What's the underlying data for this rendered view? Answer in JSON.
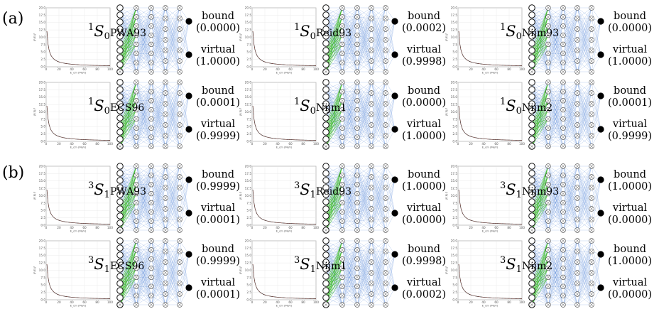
{
  "sections": [
    {
      "label": "(a)",
      "channel_sup": "1",
      "channel_sub": "0",
      "panels": [
        {
          "potential": "PWA93",
          "bound_label": "bound",
          "bound_value": "(0.0000)",
          "virtual_label": "virtual",
          "virtual_value": "(1.0000)"
        },
        {
          "potential": "Reid93",
          "bound_label": "bound",
          "bound_value": "(0.0002)",
          "virtual_label": "virtual",
          "virtual_value": "(0.9998)"
        },
        {
          "potential": "Nijm93",
          "bound_label": "bound",
          "bound_value": "(0.0000)",
          "virtual_label": "virtual",
          "virtual_value": "(1.0000)"
        },
        {
          "potential": "ECS96",
          "bound_label": "bound",
          "bound_value": "(0.0001)",
          "virtual_label": "virtual",
          "virtual_value": "(0.9999)"
        },
        {
          "potential": "Nijm1",
          "bound_label": "bound",
          "bound_value": "(0.0000)",
          "virtual_label": "virtual",
          "virtual_value": "(1.0000)"
        },
        {
          "potential": "Nijm2",
          "bound_label": "bound",
          "bound_value": "(0.0001)",
          "virtual_label": "virtual",
          "virtual_value": "(0.9999)"
        }
      ]
    },
    {
      "label": "(b)",
      "channel_sup": "3",
      "channel_sub": "1",
      "panels": [
        {
          "potential": "PWA93",
          "bound_label": "bound",
          "bound_value": "(0.9999)",
          "virtual_label": "virtual",
          "virtual_value": "(0.0001)"
        },
        {
          "potential": "Reid93",
          "bound_label": "bound",
          "bound_value": "(1.0000)",
          "virtual_label": "virtual",
          "virtual_value": "(0.0000)"
        },
        {
          "potential": "Nijm93",
          "bound_label": "bound",
          "bound_value": "(1.0000)",
          "virtual_label": "virtual",
          "virtual_value": "(0.0000)"
        },
        {
          "potential": "ECS96",
          "bound_label": "bound",
          "bound_value": "(0.9999)",
          "virtual_label": "virtual",
          "virtual_value": "(0.0001)"
        },
        {
          "potential": "Nijm1",
          "bound_label": "bound",
          "bound_value": "(0.9998)",
          "virtual_label": "virtual",
          "virtual_value": "(0.0002)"
        },
        {
          "potential": "Nijm2",
          "bound_label": "bound",
          "bound_value": "(1.0000)",
          "virtual_label": "virtual",
          "virtual_value": "(0.0000)"
        }
      ]
    }
  ],
  "mini_plot": {
    "yticks": [
      "0.0",
      "2.5",
      "5.0",
      "7.5",
      "10.0",
      "12.5",
      "15.0",
      "17.5",
      "20.0"
    ],
    "xticks": [
      "0",
      "20",
      "40",
      "60",
      "80",
      "100"
    ],
    "xlabel": "E_cm (MeV)",
    "ylabel": "|F(E)|²",
    "line_color": "#2b2b2b"
  },
  "network": {
    "layers": [
      10,
      8,
      8,
      7,
      7
    ],
    "output_nodes": 2,
    "edge_color": "#4a7fd4",
    "highlight_edge_color": "#3bb82a"
  }
}
